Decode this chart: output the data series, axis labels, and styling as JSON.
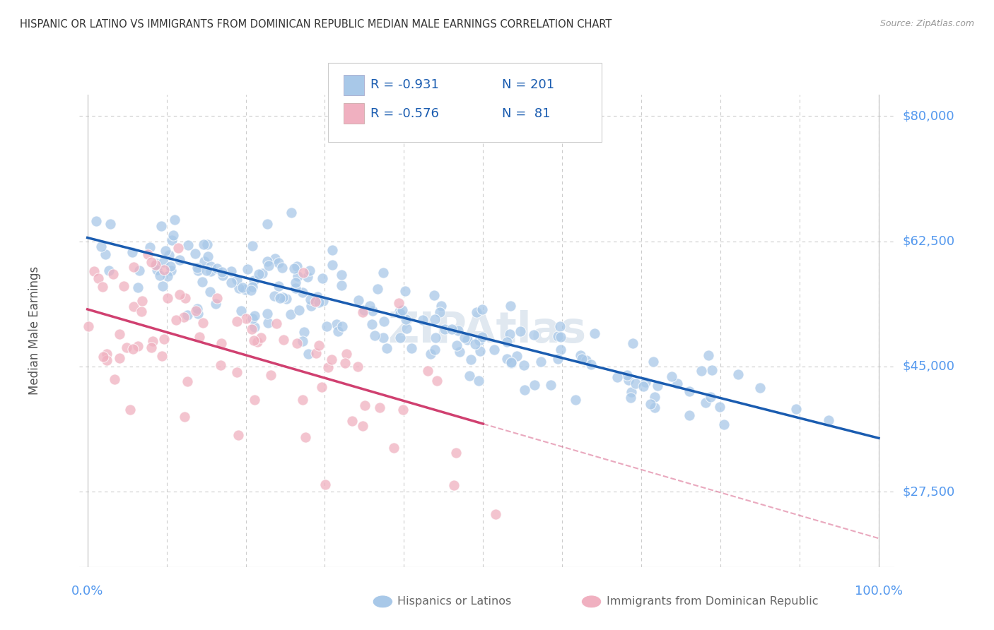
{
  "title": "HISPANIC OR LATINO VS IMMIGRANTS FROM DOMINICAN REPUBLIC MEDIAN MALE EARNINGS CORRELATION CHART",
  "source": "Source: ZipAtlas.com",
  "ylabel": "Median Male Earnings",
  "ymin": 17000,
  "ymax": 83000,
  "xmin": -0.01,
  "xmax": 1.02,
  "blue_color": "#a8c8e8",
  "pink_color": "#f0b0c0",
  "blue_line_color": "#1a5cb0",
  "pink_line_color": "#d04070",
  "axis_label_color": "#5599ee",
  "title_color": "#333333",
  "grid_color": "#cccccc",
  "watermark_text": "ZIPAtlas",
  "watermark_color": "#e0e8f0",
  "legend_R_blue": "R = -0.931",
  "legend_N_blue": "N = 201",
  "legend_R_pink": "R = -0.576",
  "legend_N_pink": "N =  81",
  "blue_N": 201,
  "pink_N": 81,
  "blue_intercept": 63000,
  "blue_slope": -28000,
  "pink_intercept": 53000,
  "pink_slope": -32000,
  "ytick_values": [
    27500,
    45000,
    62500,
    80000
  ],
  "ytick_labels": [
    "$27,500",
    "$45,000",
    "$62,500",
    "$80,000"
  ],
  "xtick_values": [
    0.0,
    0.1,
    0.2,
    0.3,
    0.4,
    0.5,
    0.6,
    0.7,
    0.8,
    0.9,
    1.0
  ]
}
